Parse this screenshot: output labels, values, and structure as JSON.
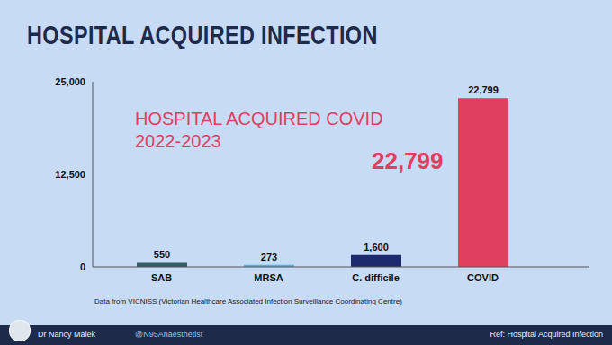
{
  "title": "HOSPITAL ACQUIRED INFECTION",
  "chart_data": {
    "type": "bar",
    "categories": [
      "SAB",
      "MRSA",
      "C. difficile",
      "COVID"
    ],
    "values": [
      550,
      273,
      1600,
      22799
    ],
    "value_labels": [
      "550",
      "273",
      "1,600",
      "22,799"
    ],
    "colors": [
      "#2f5f63",
      "#4db3e6",
      "#1d2a6e",
      "#e13f60"
    ],
    "ylim": [
      0,
      25000
    ],
    "yticks": [
      0,
      {
        "value": 12500,
        "label": "12,500"
      },
      {
        "value": 25000,
        "label": "25,000"
      }
    ],
    "grid": false,
    "data_labels": true,
    "annotation": [
      "HOSPITAL ACQUIRED COVID",
      "2022-2023"
    ],
    "highlight": "22,799",
    "source": "Data from VICNISS (Victorian Healthcare Associated Infection Surveillance Coordinating Centre)"
  },
  "footer": {
    "author": "Dr Nancy Malek",
    "handle": "@N95Anaesthetist",
    "ref": "Ref: Hospital Acquired Infection"
  }
}
